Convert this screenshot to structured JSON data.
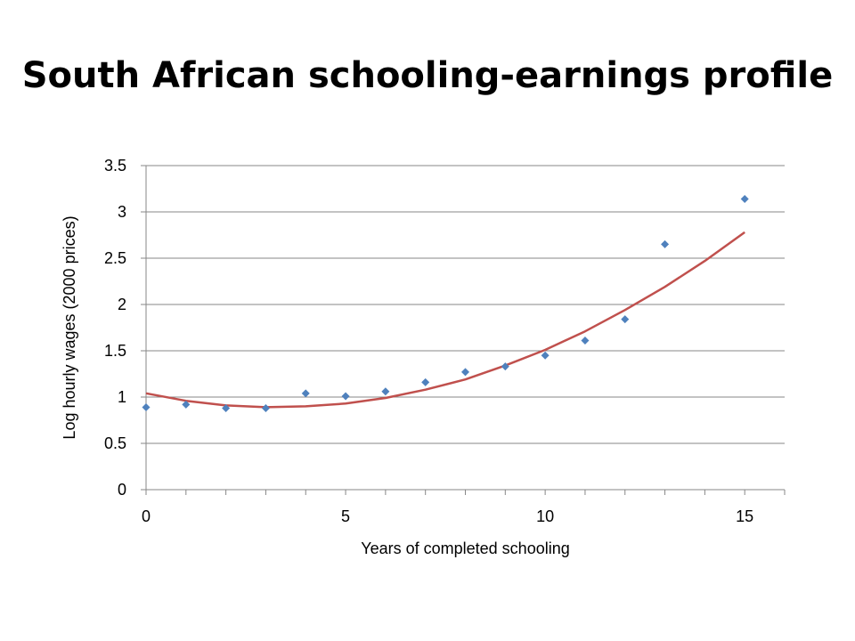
{
  "slide": {
    "title": "South African schooling-earnings profile"
  },
  "chart_data": {
    "type": "scatter",
    "xlabel": "Years of completed schooling",
    "ylabel": "Log hourly wages (2000 prices)",
    "xlim": [
      0,
      16
    ],
    "ylim": [
      0,
      3.5
    ],
    "xticks": [
      0,
      5,
      10,
      15
    ],
    "yticks": [
      0,
      0.5,
      1,
      1.5,
      2,
      2.5,
      3,
      3.5
    ],
    "grid": "horizontal",
    "legend": "none",
    "series": [
      {
        "kind": "points",
        "marker": "diamond",
        "color": "#4F81BD",
        "x": [
          0,
          1,
          2,
          3,
          4,
          5,
          6,
          7,
          8,
          9,
          10,
          11,
          12,
          13,
          15
        ],
        "y": [
          0.89,
          0.92,
          0.88,
          0.88,
          1.04,
          1.01,
          1.06,
          1.16,
          1.27,
          1.33,
          1.45,
          1.61,
          1.84,
          2.65,
          3.14
        ]
      },
      {
        "kind": "fitted-line",
        "color": "#C0504D",
        "x": [
          0,
          1,
          2,
          3,
          4,
          5,
          6,
          7,
          8,
          9,
          10,
          11,
          12,
          13,
          14,
          15
        ],
        "y": [
          1.04,
          0.96,
          0.91,
          0.89,
          0.9,
          0.93,
          0.99,
          1.08,
          1.19,
          1.34,
          1.51,
          1.71,
          1.94,
          2.19,
          2.47,
          2.78
        ]
      }
    ]
  }
}
